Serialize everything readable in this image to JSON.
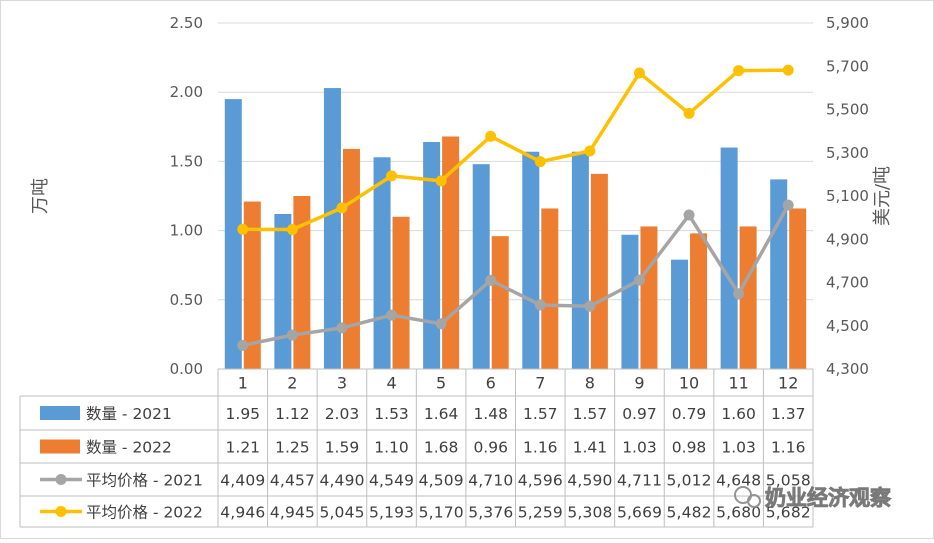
{
  "chart_data": {
    "type": "bar+line",
    "title": "",
    "categories": [
      "1",
      "2",
      "3",
      "4",
      "5",
      "6",
      "7",
      "8",
      "9",
      "10",
      "11",
      "12"
    ],
    "ylabel_left": "万吨",
    "ylabel_right": "美元/吨",
    "ylim_left": [
      0,
      2.5
    ],
    "ylim_right": [
      4300,
      5900
    ],
    "yticks_left": [
      "0.00",
      "0.50",
      "1.00",
      "1.50",
      "2.00",
      "2.50"
    ],
    "yticks_right": [
      "4,300",
      "4,500",
      "4,700",
      "4,900",
      "5,100",
      "5,300",
      "5,500",
      "5,700",
      "5,900"
    ],
    "series": [
      {
        "name": "数量 - 2021",
        "type": "bar",
        "axis": "left",
        "color": "#5B9BD5",
        "values": [
          1.95,
          1.12,
          2.03,
          1.53,
          1.64,
          1.48,
          1.57,
          1.57,
          0.97,
          0.79,
          1.6,
          1.37
        ],
        "labels": [
          "1.95",
          "1.12",
          "2.03",
          "1.53",
          "1.64",
          "1.48",
          "1.57",
          "1.57",
          "0.97",
          "0.79",
          "1.60",
          "1.37"
        ]
      },
      {
        "name": "数量 - 2022",
        "type": "bar",
        "axis": "left",
        "color": "#ED7D31",
        "values": [
          1.21,
          1.25,
          1.59,
          1.1,
          1.68,
          0.96,
          1.16,
          1.41,
          1.03,
          0.98,
          1.03,
          1.16
        ],
        "labels": [
          "1.21",
          "1.25",
          "1.59",
          "1.10",
          "1.68",
          "0.96",
          "1.16",
          "1.41",
          "1.03",
          "0.98",
          "1.03",
          "1.16"
        ]
      },
      {
        "name": "平均价格 - 2021",
        "type": "line",
        "axis": "right",
        "color": "#A5A5A5",
        "values": [
          4409,
          4457,
          4490,
          4549,
          4509,
          4710,
          4596,
          4590,
          4711,
          5012,
          4648,
          5058
        ],
        "labels": [
          "4,409",
          "4,457",
          "4,490",
          "4,549",
          "4,509",
          "4,710",
          "4,596",
          "4,590",
          "4,711",
          "5,012",
          "4,648",
          "5,058"
        ]
      },
      {
        "name": "平均价格 - 2022",
        "type": "line",
        "axis": "right",
        "color": "#FFC000",
        "values": [
          4946,
          4945,
          5045,
          5193,
          5170,
          5376,
          5259,
          5308,
          5669,
          5482,
          5680,
          5682
        ],
        "labels": [
          "4,946",
          "4,945",
          "5,045",
          "5,193",
          "5,170",
          "5,376",
          "5,259",
          "5,308",
          "5,669",
          "5,482",
          "5,680",
          "5,682"
        ]
      }
    ],
    "legend": "data-table-bottom"
  },
  "watermark": {
    "text": "奶业经济观察"
  }
}
